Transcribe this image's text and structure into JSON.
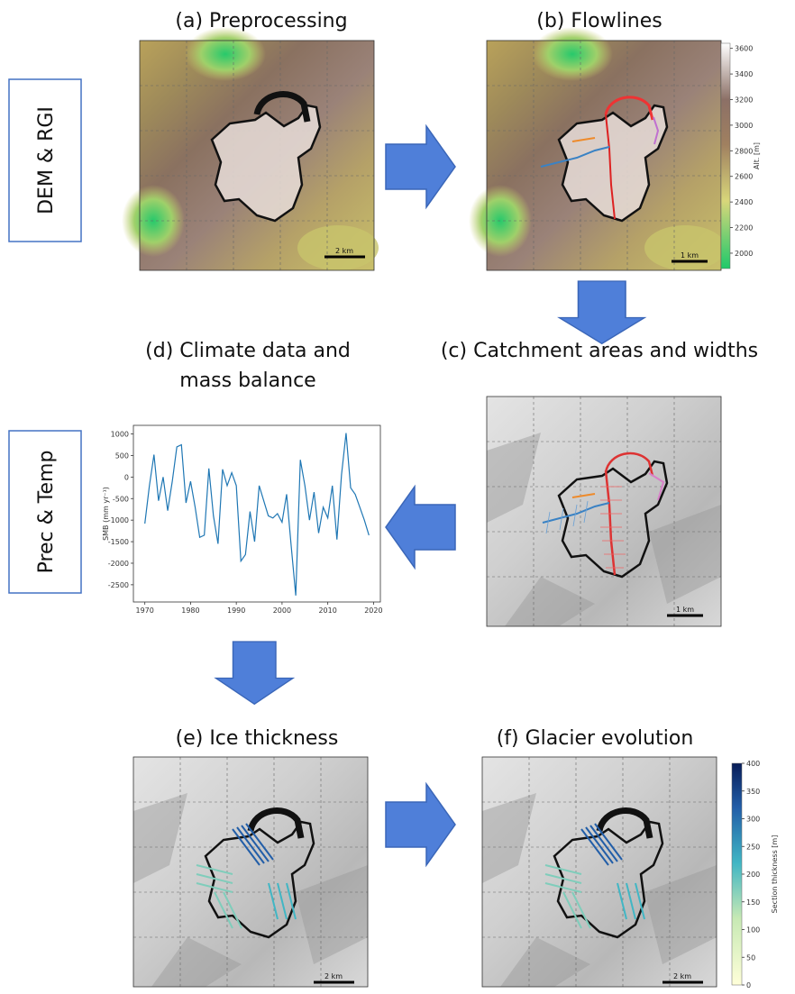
{
  "side_labels": [
    "DEM & RGI",
    "Prec & Temp"
  ],
  "panels": [
    {
      "title": "(a) Preprocessing",
      "scale_label": "2 km"
    },
    {
      "title": "(b) Flowlines",
      "scale_label": "1 km"
    },
    {
      "title": "(c) Catchment areas and widths",
      "scale_label": "1 km"
    },
    {
      "title_lines": [
        "(d) Climate data and",
        "mass balance"
      ]
    },
    {
      "title": "(e) Ice thickness",
      "scale_label": "2 km"
    },
    {
      "title": "(f) Glacier evolution",
      "scale_label": "2 km"
    }
  ],
  "climate_chart": {
    "type": "line",
    "ylabel": "SMB (mm yr⁻¹)",
    "color": "#1f77b4",
    "x": [
      1970,
      1971,
      1972,
      1973,
      1974,
      1975,
      1976,
      1977,
      1978,
      1979,
      1980,
      1981,
      1982,
      1983,
      1984,
      1985,
      1986,
      1987,
      1988,
      1989,
      1990,
      1991,
      1992,
      1993,
      1994,
      1995,
      1996,
      1997,
      1998,
      1999,
      2000,
      2001,
      2002,
      2003,
      2004,
      2005,
      2006,
      2007,
      2008,
      2009,
      2010,
      2011,
      2012,
      2013,
      2014,
      2015,
      2016,
      2017,
      2018,
      2019
    ],
    "values": [
      -1080,
      -200,
      520,
      -550,
      0,
      -780,
      -100,
      700,
      750,
      -600,
      -100,
      -700,
      -1400,
      -1350,
      200,
      -900,
      -1550,
      180,
      -200,
      100,
      -200,
      -1950,
      -1800,
      -800,
      -1500,
      -200,
      -550,
      -900,
      -950,
      -850,
      -1050,
      -400,
      -1600,
      -2750,
      400,
      -200,
      -1000,
      -350,
      -1300,
      -700,
      -950,
      -200,
      -1450,
      50,
      1020,
      -250,
      -400,
      -700,
      -1000,
      -1350
    ],
    "xlim": [
      1967.5,
      2021.5
    ],
    "ylim": [
      -2900,
      1200
    ],
    "xticks": [
      1970,
      1980,
      1990,
      2000,
      2010,
      2020
    ],
    "yticks": [
      1000,
      500,
      0,
      -500,
      -1000,
      -1500,
      -2000,
      -2500
    ]
  },
  "elevation_colorbar": {
    "label": "Alt. [m]",
    "lim": [
      1880,
      3640
    ],
    "ticks": [
      2000,
      2200,
      2400,
      2600,
      2800,
      3000,
      3200,
      3400,
      3600
    ]
  },
  "thickness_colorbar": {
    "label": "Section thickness [m]",
    "lim": [
      0,
      400
    ],
    "ticks": [
      0,
      50,
      100,
      150,
      200,
      250,
      300,
      350,
      400
    ]
  }
}
